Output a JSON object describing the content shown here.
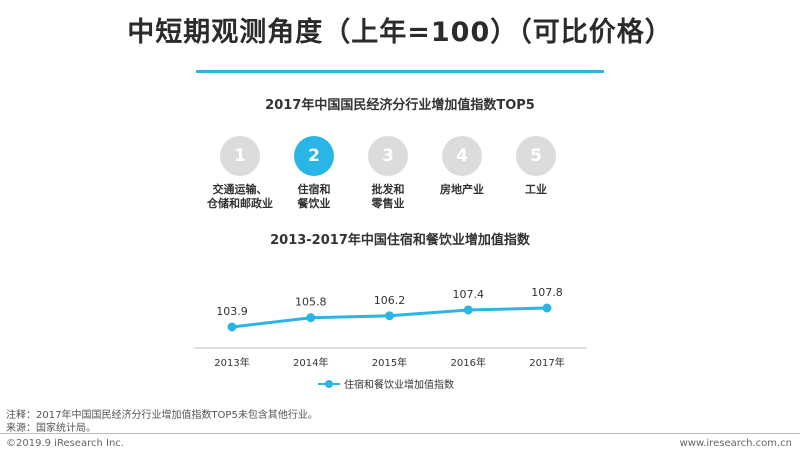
{
  "page": {
    "title": "中短期观测角度（上年=100）（可比价格）",
    "section1_title": "2017年中国国民经济分行业增加值指数TOP5",
    "section2_title": "2013-2017年中国住宿和餐饮业增加值指数",
    "notes": [
      "注释：2017年中国国民经济分行业增加值指数TOP5未包含其他行业。",
      "来源：国家统计局。"
    ],
    "footer_left": "©2019.9 iResearch Inc.",
    "footer_right": "www.iresearch.com.cn"
  },
  "ranking": [
    {
      "rank": "1",
      "name": "交通运输、\n仓储和邮政业",
      "active": false
    },
    {
      "rank": "2",
      "name": "住宿和\n餐饮业",
      "active": true
    },
    {
      "rank": "3",
      "name": "批发和\n零售业",
      "active": false
    },
    {
      "rank": "4",
      "name": "房地产业",
      "active": false
    },
    {
      "rank": "5",
      "name": "工业",
      "active": false
    }
  ],
  "colors": {
    "accent": "#29b6e6",
    "inactive": "#dcdcdc",
    "text": "#333333"
  },
  "chart_data": {
    "type": "line",
    "title": "2013-2017年中国住宿和餐饮业增加值指数",
    "categories": [
      "2013年",
      "2014年",
      "2015年",
      "2016年",
      "2017年"
    ],
    "series": [
      {
        "name": "住宿和餐饮业增加值指数",
        "values": [
          103.9,
          105.8,
          106.2,
          107.4,
          107.8
        ]
      }
    ],
    "xlabel": "",
    "ylabel": "",
    "grid": false,
    "legend_position": "bottom"
  }
}
